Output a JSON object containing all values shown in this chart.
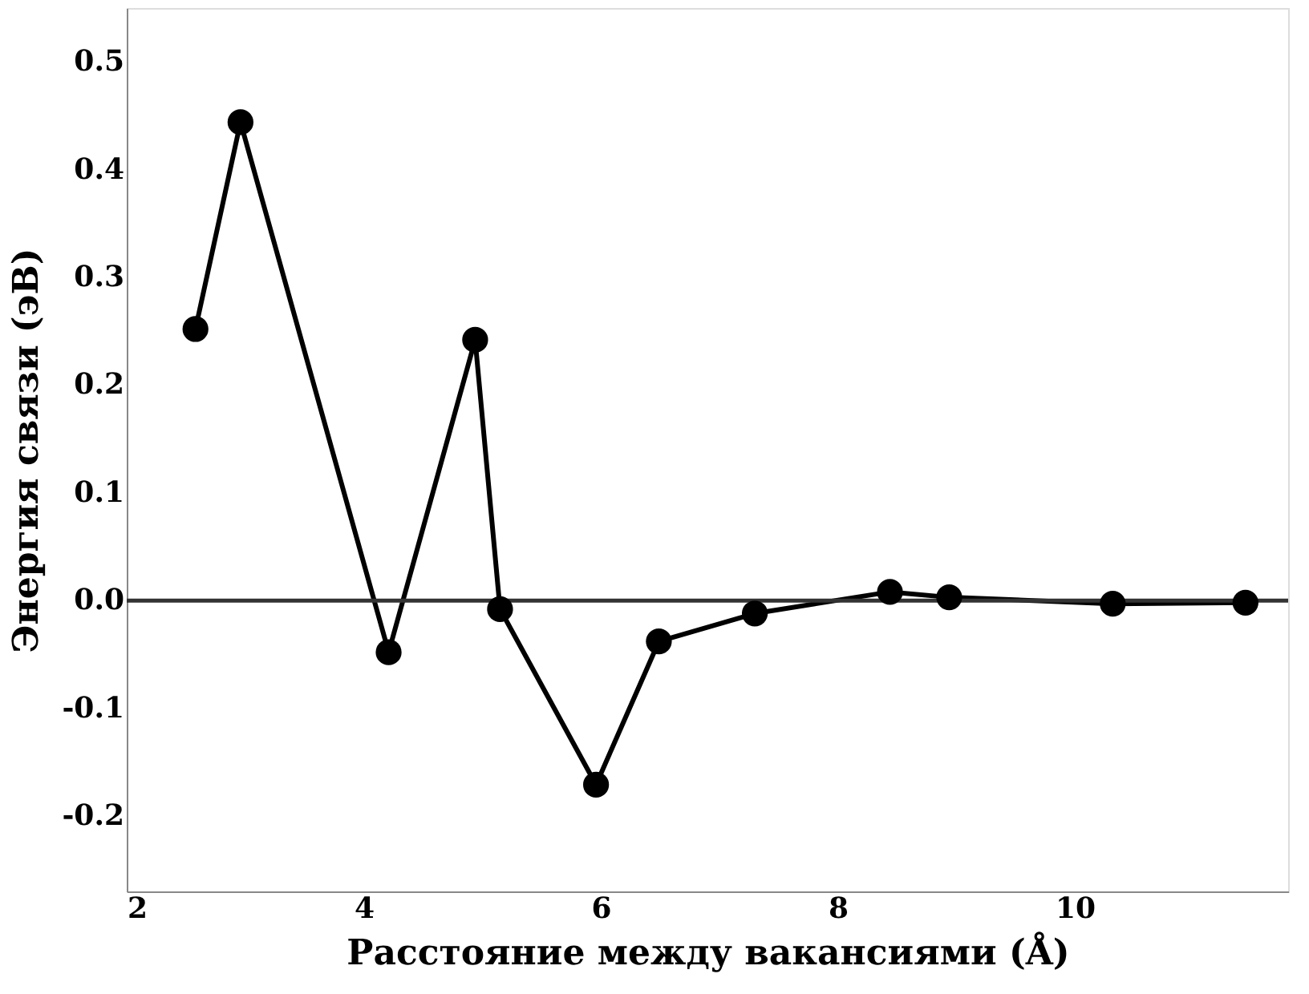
{
  "chart_data": {
    "type": "line",
    "xlabel": "Расстояние между вакансиями (Å)",
    "ylabel": "Энергия связи (эВ)",
    "x": [
      2.58,
      2.96,
      4.21,
      4.94,
      5.15,
      5.96,
      6.49,
      7.3,
      8.44,
      8.94,
      10.32,
      11.44
    ],
    "series": [
      {
        "color": "#000000",
        "values": [
          0.252,
          0.444,
          -0.048,
          0.242,
          -0.008,
          -0.171,
          -0.038,
          -0.012,
          0.008,
          0.003,
          -0.003,
          -0.002
        ]
      }
    ],
    "xlim": [
      2,
      11.8
    ],
    "xticks": [
      2,
      4,
      6,
      8,
      10
    ],
    "ylim": [
      -0.27,
      0.55
    ],
    "yticks": [
      {
        "value": -0.2,
        "label": "-0.2"
      },
      {
        "value": -0.1,
        "label": "-0.1"
      },
      {
        "value": 0,
        "label": "0.0"
      },
      {
        "value": 0.1,
        "label": "0.1"
      },
      {
        "value": 0.2,
        "label": "0.2"
      },
      {
        "value": 0.3,
        "label": "0.3"
      },
      {
        "value": 0.4,
        "label": "0.4"
      },
      {
        "value": 0.5,
        "label": "0.5"
      }
    ],
    "ref_lines": [
      {
        "axis": "y",
        "value": 0,
        "color": "#333333"
      }
    ],
    "marker": "circle",
    "line_style": "solid",
    "grid": false
  }
}
